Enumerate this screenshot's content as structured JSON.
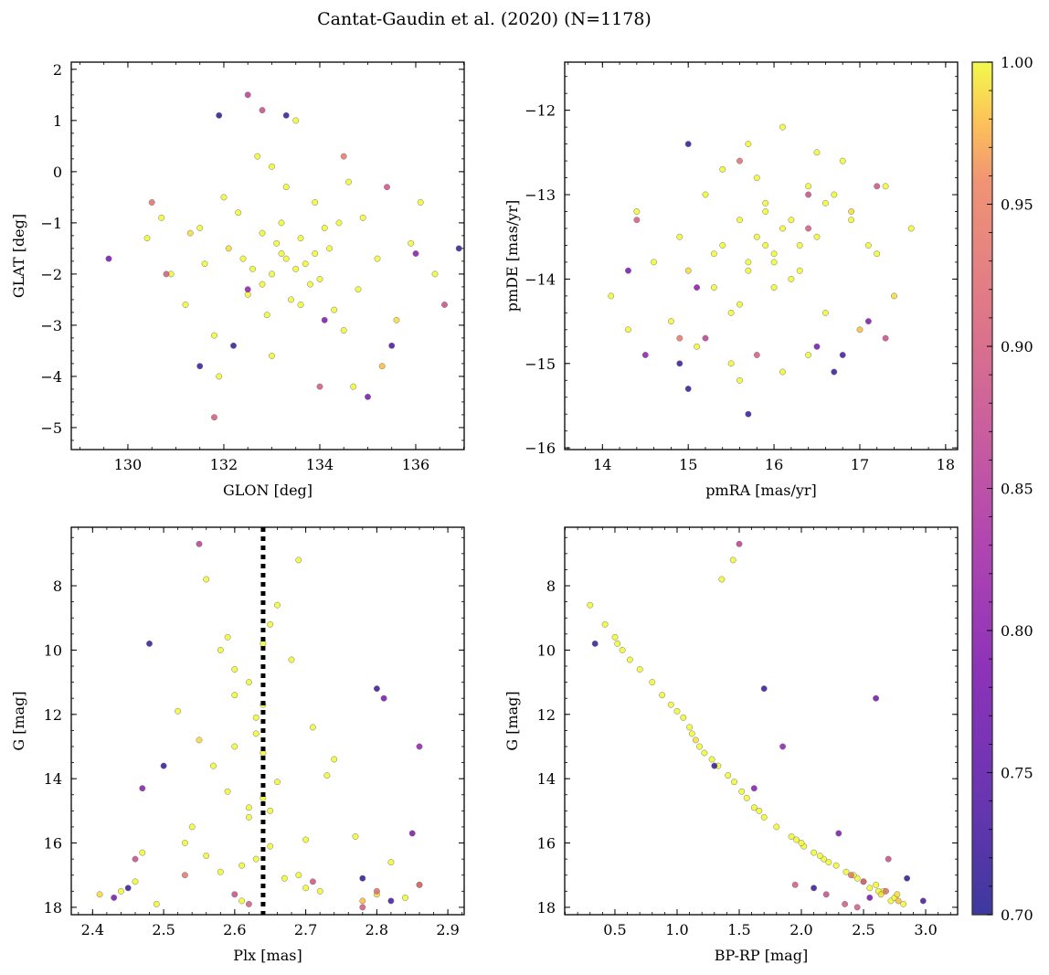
{
  "chart_data": {
    "type": "scatter",
    "title": "Cantat-Gaudin et al. (2020) (N=1178)",
    "colorbar": {
      "cmap": "plasma",
      "range": [
        0.7,
        1.0
      ],
      "ticks": [
        "0.70",
        "0.75",
        "0.80",
        "0.85",
        "0.90",
        "0.95",
        "1.00"
      ],
      "tick_values": [
        0.7,
        0.75,
        0.8,
        0.85,
        0.9,
        0.95,
        1.0
      ]
    },
    "star_fields": [
      "GLON",
      "GLAT",
      "pmRA",
      "pmDE",
      "Plx",
      "G",
      "BP-RP",
      "prob"
    ],
    "stars": [
      [
        133.2,
        -1.6,
        15.8,
        -13.5,
        2.63,
        12.1,
        1.05,
        1.0
      ],
      [
        133.5,
        -1.9,
        16.0,
        -13.7,
        2.64,
        13.2,
        1.22,
        1.0
      ],
      [
        132.8,
        -1.2,
        15.6,
        -13.3,
        2.6,
        11.4,
        0.88,
        1.0
      ],
      [
        134.0,
        -2.1,
        16.3,
        -13.9,
        2.66,
        14.1,
        1.46,
        1.0
      ],
      [
        133.1,
        -1.4,
        15.9,
        -13.6,
        2.62,
        15.2,
        1.7,
        1.0
      ],
      [
        133.7,
        -1.8,
        16.1,
        -13.4,
        2.65,
        16.1,
        2.02,
        1.0
      ],
      [
        132.5,
        -2.4,
        15.3,
        -14.1,
        2.58,
        16.9,
        2.36,
        1.0
      ],
      [
        134.4,
        -1.0,
        16.6,
        -13.1,
        2.7,
        17.4,
        2.55,
        1.0
      ],
      [
        133.3,
        -1.7,
        15.7,
        -13.8,
        2.61,
        17.8,
        2.72,
        1.0
      ],
      [
        132.1,
        -1.5,
        15.0,
        -13.9,
        2.55,
        12.8,
        1.15,
        0.99
      ],
      [
        134.8,
        -2.3,
        16.9,
        -13.3,
        2.73,
        13.9,
        1.41,
        1.0
      ],
      [
        133.9,
        -0.6,
        16.4,
        -12.9,
        2.68,
        10.3,
        0.62,
        1.0
      ],
      [
        132.9,
        -2.8,
        15.5,
        -14.4,
        2.59,
        9.6,
        0.5,
        1.0
      ],
      [
        131.5,
        -1.1,
        14.6,
        -13.8,
        2.52,
        11.9,
        1.0,
        1.0
      ],
      [
        135.2,
        -1.7,
        17.1,
        -13.6,
        2.77,
        15.8,
        1.92,
        1.0
      ],
      [
        133.6,
        -1.3,
        15.9,
        -13.2,
        2.64,
        14.6,
        1.56,
        1.0
      ],
      [
        133.0,
        -2.0,
        16.2,
        -14.0,
        2.63,
        16.5,
        2.18,
        1.0
      ],
      [
        134.2,
        -1.5,
        16.5,
        -13.5,
        2.67,
        17.1,
        2.45,
        1.0
      ],
      [
        132.3,
        -0.8,
        15.2,
        -13.0,
        2.57,
        13.6,
        1.33,
        1.0
      ],
      [
        135.6,
        -2.9,
        17.4,
        -14.2,
        2.8,
        17.6,
        2.64,
        0.99
      ],
      [
        130.9,
        -2.0,
        14.3,
        -14.6,
        2.47,
        16.3,
        2.1,
        1.0
      ],
      [
        131.8,
        -3.2,
        15.1,
        -14.8,
        2.54,
        15.5,
        1.8,
        1.0
      ],
      [
        134.6,
        -0.2,
        16.8,
        -12.6,
        2.71,
        12.4,
        1.1,
        1.0
      ],
      [
        133.4,
        -2.5,
        15.6,
        -14.3,
        2.62,
        11.0,
        0.8,
        1.0
      ],
      [
        132.6,
        -1.9,
        15.4,
        -13.6,
        2.6,
        10.6,
        0.7,
        1.0
      ],
      [
        133.8,
        -2.2,
        16.0,
        -13.8,
        2.65,
        9.2,
        0.42,
        1.0
      ],
      [
        134.1,
        -1.1,
        16.2,
        -13.3,
        2.66,
        8.6,
        0.3,
        1.0
      ],
      [
        132.7,
        0.3,
        15.7,
        -12.4,
        2.56,
        7.8,
        1.36,
        1.0
      ],
      [
        133.5,
        1.0,
        16.1,
        -12.2,
        2.69,
        7.2,
        1.45,
        1.0
      ],
      [
        131.2,
        -2.6,
        14.8,
        -14.5,
        2.49,
        17.9,
        2.82,
        1.0
      ],
      [
        135.9,
        -1.4,
        17.6,
        -13.4,
        2.84,
        17.7,
        2.75,
        1.0
      ],
      [
        136.4,
        -2.0,
        17.2,
        -13.7,
        2.86,
        17.3,
        2.6,
        1.0
      ],
      [
        130.4,
        -1.3,
        14.1,
        -14.2,
        2.44,
        17.5,
        2.66,
        1.0
      ],
      [
        133.0,
        -3.6,
        15.5,
        -15.0,
        2.61,
        16.7,
        2.28,
        1.0
      ],
      [
        134.5,
        -3.1,
        16.4,
        -14.9,
        2.7,
        15.9,
        1.96,
        1.0
      ],
      [
        132.0,
        -0.5,
        15.8,
        -12.8,
        2.59,
        14.4,
        1.52,
        1.0
      ],
      [
        134.9,
        -0.9,
        16.7,
        -13.0,
        2.74,
        13.4,
        1.28,
        1.0
      ],
      [
        133.2,
        -1.0,
        15.9,
        -13.1,
        2.63,
        12.6,
        1.12,
        1.0
      ],
      [
        133.6,
        -2.6,
        16.0,
        -14.1,
        2.64,
        11.7,
        0.95,
        1.0
      ],
      [
        132.4,
        -1.7,
        15.3,
        -13.7,
        2.58,
        10.0,
        0.56,
        1.0
      ],
      [
        134.3,
        -2.7,
        16.6,
        -14.4,
        2.69,
        17.0,
        2.42,
        1.0
      ],
      [
        131.6,
        -1.8,
        14.9,
        -13.5,
        2.53,
        16.0,
        2.0,
        1.0
      ],
      [
        135.3,
        -3.8,
        17.0,
        -14.6,
        2.78,
        17.8,
        2.78,
        0.98
      ],
      [
        130.7,
        -0.9,
        14.4,
        -13.2,
        2.46,
        17.2,
        2.5,
        1.0
      ],
      [
        136.1,
        -0.6,
        17.3,
        -12.9,
        2.82,
        16.6,
        2.22,
        1.0
      ],
      [
        133.9,
        -1.6,
        15.7,
        -13.9,
        2.65,
        15.0,
        1.66,
        1.0
      ],
      [
        132.8,
        -2.2,
        16.3,
        -13.6,
        2.62,
        14.9,
        1.62,
        1.0
      ],
      [
        133.3,
        -0.3,
        15.4,
        -12.7,
        2.6,
        13.0,
        1.18,
        1.0
      ],
      [
        131.9,
        -4.0,
        15.6,
        -15.2,
        2.56,
        16.4,
        2.15,
        1.0
      ],
      [
        134.7,
        -4.2,
        16.1,
        -15.1,
        2.72,
        17.5,
        2.62,
        1.0
      ],
      [
        133.0,
        0.1,
        16.5,
        -12.5,
        2.64,
        9.8,
        0.52,
        1.0
      ],
      [
        132.2,
        -3.4,
        14.9,
        -15.0,
        2.48,
        9.8,
        0.34,
        0.72
      ],
      [
        131.5,
        -3.8,
        15.0,
        -15.3,
        2.5,
        13.6,
        1.3,
        0.72
      ],
      [
        136.9,
        -1.5,
        16.7,
        -15.1,
        2.8,
        11.2,
        1.7,
        0.72
      ],
      [
        131.9,
        1.1,
        15.0,
        -12.4,
        2.78,
        17.1,
        2.85,
        0.71
      ],
      [
        135.5,
        -3.4,
        16.8,
        -14.9,
        2.82,
        17.8,
        2.98,
        0.73
      ],
      [
        133.3,
        1.1,
        15.7,
        -15.6,
        2.45,
        17.4,
        2.1,
        0.72
      ],
      [
        135.0,
        -4.4,
        16.5,
        -14.8,
        2.81,
        11.5,
        2.6,
        0.78
      ],
      [
        136.0,
        -1.6,
        15.1,
        -14.1,
        2.47,
        14.3,
        1.62,
        0.8
      ],
      [
        129.6,
        -1.7,
        14.3,
        -13.9,
        2.43,
        17.7,
        2.55,
        0.78
      ],
      [
        134.1,
        -2.9,
        17.1,
        -14.5,
        2.85,
        15.7,
        2.3,
        0.79
      ],
      [
        132.5,
        -2.3,
        14.5,
        -14.9,
        2.86,
        13.0,
        1.85,
        0.81
      ],
      [
        132.5,
        1.5,
        15.2,
        -14.7,
        2.55,
        6.7,
        1.5,
        0.86
      ],
      [
        132.8,
        1.2,
        16.4,
        -13.0,
        2.6,
        17.6,
        2.2,
        0.88
      ],
      [
        131.8,
        -4.8,
        15.8,
        -14.9,
        2.78,
        18.0,
        2.45,
        0.9
      ],
      [
        134.0,
        -4.2,
        16.4,
        -13.4,
        2.86,
        17.3,
        1.95,
        0.9
      ],
      [
        136.6,
        -2.6,
        17.3,
        -14.7,
        2.46,
        16.5,
        2.7,
        0.88
      ],
      [
        130.8,
        -2.0,
        14.4,
        -13.3,
        2.62,
        17.9,
        2.35,
        0.9
      ],
      [
        135.4,
        -0.3,
        17.2,
        -12.9,
        2.71,
        17.2,
        2.5,
        0.89
      ],
      [
        130.5,
        -0.6,
        15.6,
        -12.6,
        2.8,
        17.5,
        2.68,
        0.93
      ],
      [
        134.5,
        0.3,
        14.9,
        -14.7,
        2.53,
        17.0,
        2.4,
        0.94
      ],
      [
        131.3,
        -1.2,
        16.9,
        -13.2,
        2.41,
        17.6,
        2.77,
        0.99
      ]
    ],
    "panels": [
      {
        "xlabel": "GLON [deg]",
        "ylabel": "GLAT [deg]",
        "x_field": 0,
        "y_field": 1,
        "xlim": [
          128.82,
          137.01
        ],
        "ylim": [
          -5.43,
          2.14
        ],
        "invert_y": false,
        "xticks": [
          130,
          132,
          134,
          136
        ],
        "xtick_labels": [
          "130",
          "132",
          "134",
          "136"
        ],
        "yticks": [
          2,
          1,
          0,
          -1,
          -2,
          -3,
          -4,
          -5
        ],
        "ytick_labels": [
          "2",
          "1",
          "0",
          "−1",
          "−2",
          "−3",
          "−4",
          "−5"
        ],
        "xminor": 0.5,
        "yminor": 0.25
      },
      {
        "xlabel": "pmRA [mas/yr]",
        "ylabel": "pmDE [mas/yr]",
        "x_field": 2,
        "y_field": 3,
        "xlim": [
          13.56,
          18.14
        ],
        "ylim": [
          -16.02,
          -11.43
        ],
        "invert_y": false,
        "xticks": [
          14,
          15,
          16,
          17,
          18
        ],
        "xtick_labels": [
          "14",
          "15",
          "16",
          "17",
          "18"
        ],
        "yticks": [
          -12,
          -13,
          -14,
          -15,
          -16
        ],
        "ytick_labels": [
          "−12",
          "−13",
          "−14",
          "−15",
          "−16"
        ],
        "xminor": 0.2,
        "yminor": 0.2
      },
      {
        "xlabel": "Plx [mas]",
        "ylabel": "G [mag]",
        "x_field": 4,
        "y_field": 5,
        "xlim": [
          2.37,
          2.923
        ],
        "ylim": [
          6.18,
          18.23
        ],
        "invert_y": true,
        "xticks": [
          2.4,
          2.5,
          2.6,
          2.7,
          2.8,
          2.9
        ],
        "xtick_labels": [
          "2.4",
          "2.5",
          "2.6",
          "2.7",
          "2.8",
          "2.9"
        ],
        "yticks": [
          8,
          10,
          12,
          14,
          16,
          18
        ],
        "ytick_labels": [
          "8",
          "10",
          "12",
          "14",
          "16",
          "18"
        ],
        "xminor": 0.02,
        "yminor": 0.5,
        "vline": {
          "x": 2.64,
          "style": "dotted",
          "color": "#000000"
        }
      },
      {
        "xlabel": "BP-RP [mag]",
        "ylabel": "G [mag]",
        "x_field": 6,
        "y_field": 5,
        "xlim": [
          0.096,
          3.257
        ],
        "ylim": [
          6.18,
          18.23
        ],
        "invert_y": true,
        "xticks": [
          0.5,
          1.0,
          1.5,
          2.0,
          2.5,
          3.0
        ],
        "xtick_labels": [
          "0.5",
          "1.0",
          "1.5",
          "2.0",
          "2.5",
          "3.0"
        ],
        "yticks": [
          8,
          10,
          12,
          14,
          16,
          18
        ],
        "ytick_labels": [
          "8",
          "10",
          "12",
          "14",
          "16",
          "18"
        ],
        "xminor": 0.1,
        "yminor": 0.5
      }
    ]
  }
}
